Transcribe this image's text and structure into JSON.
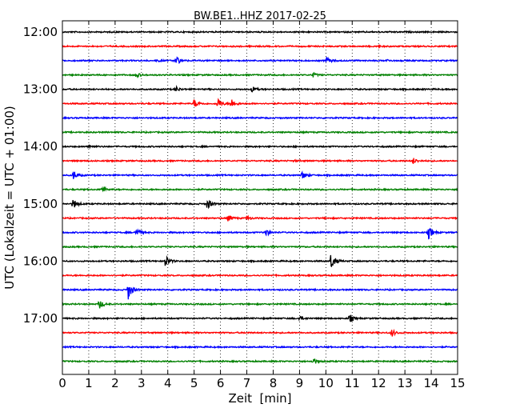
{
  "chart_data": {
    "type": "line",
    "title": "BW.BE1..HHZ 2017-02-25",
    "xlabel": "Zeit  [min]",
    "ylabel": "UTC (Lokalzeit = UTC + 01:00)",
    "xlim": [
      0,
      15
    ],
    "x_ticks": [
      "0",
      "1",
      "2",
      "3",
      "4",
      "5",
      "6",
      "7",
      "8",
      "9",
      "10",
      "11",
      "12",
      "13",
      "14",
      "15"
    ],
    "y_ticks": [
      {
        "label": "12:00",
        "row": 0
      },
      {
        "label": "13:00",
        "row": 4
      },
      {
        "label": "14:00",
        "row": 8
      },
      {
        "label": "15:00",
        "row": 12
      },
      {
        "label": "16:00",
        "row": 16
      },
      {
        "label": "17:00",
        "row": 20
      }
    ],
    "grid": "vertical-dotted",
    "trace_minutes_per_row": 15,
    "series_colors": [
      "#000000",
      "#ff0000",
      "#0000ff",
      "#008000"
    ],
    "rows": [
      {
        "time": "12:00",
        "events": [
          {
            "t": 12.5,
            "a": 0.5
          }
        ]
      },
      {
        "time": "12:15",
        "events": [
          {
            "t": 12.0,
            "a": 0.5
          }
        ]
      },
      {
        "time": "12:30",
        "events": [
          {
            "t": 4.3,
            "a": 6.5
          },
          {
            "t": 10.0,
            "a": 5.5
          },
          {
            "t": 3.6,
            "a": 1.0
          },
          {
            "t": 12.3,
            "a": 1.0
          }
        ]
      },
      {
        "time": "12:45",
        "events": [
          {
            "t": 2.8,
            "a": 3.5
          },
          {
            "t": 9.5,
            "a": 3.0
          }
        ]
      },
      {
        "time": "13:00",
        "events": [
          {
            "t": 4.3,
            "a": 3.5
          },
          {
            "t": 7.2,
            "a": 3.5
          }
        ]
      },
      {
        "time": "13:15",
        "events": [
          {
            "t": 5.0,
            "a": 5.5
          },
          {
            "t": 5.9,
            "a": 7.0
          },
          {
            "t": 6.4,
            "a": 6.5
          }
        ]
      },
      {
        "time": "13:30",
        "events": []
      },
      {
        "time": "13:45",
        "events": []
      },
      {
        "time": "14:00",
        "events": [
          {
            "t": 1.0,
            "a": 2.0
          }
        ]
      },
      {
        "time": "14:15",
        "events": [
          {
            "t": 13.3,
            "a": 4.0
          },
          {
            "t": 8.8,
            "a": 1.0
          }
        ]
      },
      {
        "time": "14:30",
        "events": [
          {
            "t": 0.4,
            "a": 6.5
          },
          {
            "t": 9.1,
            "a": 5.0
          }
        ]
      },
      {
        "time": "14:45",
        "events": [
          {
            "t": 1.5,
            "a": 4.0
          }
        ]
      },
      {
        "time": "15:00",
        "events": [
          {
            "t": 0.4,
            "a": 7.0
          },
          {
            "t": 5.5,
            "a": 7.0
          }
        ]
      },
      {
        "time": "15:15",
        "events": [
          {
            "t": 6.3,
            "a": 4.5
          },
          {
            "t": 7.0,
            "a": 3.0
          }
        ]
      },
      {
        "time": "15:30",
        "events": [
          {
            "t": 2.8,
            "a": 6.0
          },
          {
            "t": 7.7,
            "a": 5.5
          },
          {
            "t": 13.9,
            "a": 8.0
          }
        ]
      },
      {
        "time": "15:45",
        "events": []
      },
      {
        "time": "16:00",
        "events": [
          {
            "t": 3.9,
            "a": 8.0
          },
          {
            "t": 10.2,
            "a": 11.0
          }
        ]
      },
      {
        "time": "16:15",
        "events": []
      },
      {
        "time": "16:30",
        "events": [
          {
            "t": 2.5,
            "a": 12.0
          }
        ]
      },
      {
        "time": "16:45",
        "events": [
          {
            "t": 1.4,
            "a": 6.0
          }
        ]
      },
      {
        "time": "17:00",
        "events": [
          {
            "t": 9.0,
            "a": 3.0
          },
          {
            "t": 10.9,
            "a": 5.5
          }
        ]
      },
      {
        "time": "17:15",
        "events": [
          {
            "t": 12.5,
            "a": 4.5
          }
        ]
      },
      {
        "time": "17:30",
        "events": []
      },
      {
        "time": "17:45",
        "events": [
          {
            "t": 9.5,
            "a": 5.0
          }
        ]
      }
    ]
  }
}
